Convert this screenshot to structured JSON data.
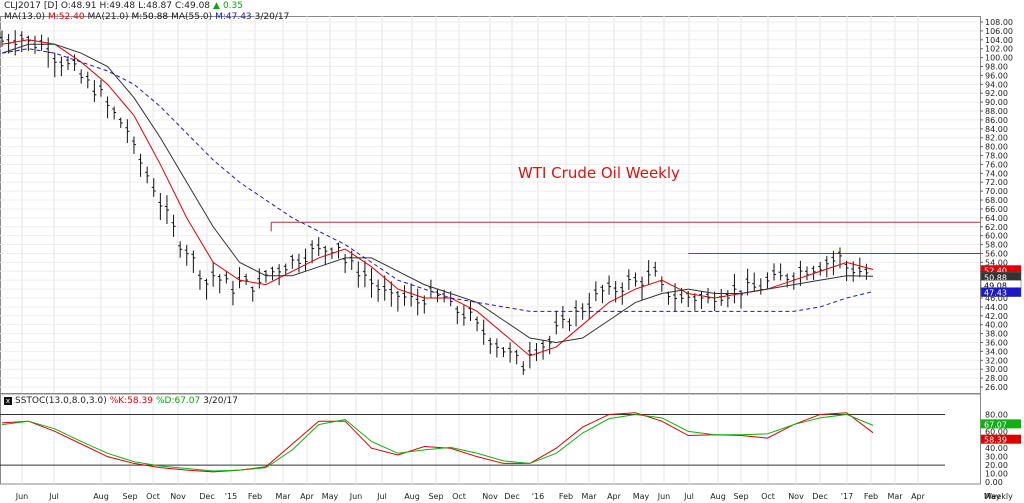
{
  "header": {
    "symbol": "CLJ2017",
    "interval": "[D]",
    "open": "O:48.91",
    "high": "H:49.48",
    "low": "L:48.87",
    "close": "C:49.08",
    "change": "0.35",
    "ma1_label": "MA(13.0)",
    "ma1_value": "M:52.40",
    "ma2_label": "MA(21.0)",
    "ma2_value": "M:50.88",
    "ma3_label": "MA(55.0)",
    "ma3_value": "M:47.43",
    "date": "3/20/17"
  },
  "title": "WTI Crude Oil Weekly",
  "stoch_header": {
    "icon": "x",
    "label": "SSTOC(13.0,8.0,3.0)",
    "k": "%K:58.39",
    "d": "%D:67.07",
    "date": "3/20/17"
  },
  "x_axis_labels": [
    "Jun",
    "Jul",
    "Aug",
    "Sep",
    "Oct",
    "Nov",
    "Dec",
    "'15",
    "Feb",
    "Mar",
    "Apr",
    "May",
    "Jun",
    "Jul",
    "Aug",
    "Sep",
    "Oct",
    "Nov",
    "Dec",
    "'16",
    "Feb",
    "Mar",
    "Apr",
    "May",
    "Jun",
    "Jul",
    "Aug",
    "Sep",
    "Oct",
    "Nov",
    "Dec",
    "'17",
    "Feb",
    "Mar",
    "Apr",
    "May",
    "Weekly"
  ],
  "price_labels": [
    "108.00",
    "106.00",
    "104.00",
    "102.00",
    "100.00",
    "98.00",
    "96.00",
    "94.00",
    "92.00",
    "90.00",
    "88.00",
    "86.00",
    "84.00",
    "82.00",
    "80.00",
    "78.00",
    "76.00",
    "74.00",
    "72.00",
    "70.00",
    "68.00",
    "66.00",
    "64.00",
    "62.00",
    "60.00",
    "58.00",
    "56.00",
    "54.00",
    "52.00",
    "50.00",
    "48.00",
    "46.00",
    "44.00",
    "42.00",
    "40.00",
    "38.00",
    "36.00",
    "34.00",
    "32.00",
    "30.00",
    "28.00",
    "26.00"
  ],
  "stoch_labels": [
    "80.00",
    "70.00",
    "60.00",
    "50.00",
    "40.00",
    "30.00",
    "20.00",
    "10.00",
    "0.00"
  ],
  "value_tags": [
    {
      "text": "52.40",
      "value": 52.4,
      "bg": "#e00000",
      "fg": "#ffffff"
    },
    {
      "text": "50.88",
      "value": 50.88,
      "bg": "#333333",
      "fg": "#ffffff"
    },
    {
      "text": "49.08",
      "value": 49.08,
      "bg": "#ffffff",
      "fg": "#000000"
    },
    {
      "text": "47.43",
      "value": 47.43,
      "bg": "#1a1ac8",
      "fg": "#ffffff"
    }
  ],
  "stoch_tags": [
    {
      "text": "67.07",
      "value": 67.07,
      "bg": "#10b010",
      "fg": "#ffffff"
    },
    {
      "text": "58.39",
      "value": 58.39,
      "bg": "#e00000",
      "fg": "#ffffff"
    }
  ],
  "colors": {
    "ma13": "#e00000",
    "ma21": "#333333",
    "ma55": "#1a1ac8",
    "bars": "#111111",
    "k": "#e00000",
    "d": "#10b010",
    "resistance": "#b03030"
  },
  "chart_data": [
    {
      "type": "ohlc-line",
      "title": "WTI Crude Oil Weekly",
      "ylim": [
        26,
        108
      ],
      "x": [
        "Jun",
        "Jul",
        "Aug",
        "Sep",
        "Oct",
        "Nov",
        "Dec",
        "'15",
        "Feb",
        "Mar",
        "Apr",
        "May",
        "Jun",
        "Jul",
        "Aug",
        "Sep",
        "Oct",
        "Nov",
        "Dec",
        "'16",
        "Feb",
        "Mar",
        "Apr",
        "May",
        "Jun",
        "Jul",
        "Aug",
        "Sep",
        "Oct",
        "Nov",
        "Dec",
        "'17",
        "Feb",
        "Mar"
      ],
      "series": [
        {
          "name": "MA(13.0)",
          "values": [
            103,
            104,
            103,
            99,
            94,
            87,
            76,
            64,
            54,
            50,
            49,
            52,
            55,
            57,
            53,
            48,
            46,
            46,
            43,
            38,
            33,
            35,
            40,
            45,
            48,
            50,
            47,
            46,
            47,
            48,
            50,
            52,
            54,
            52.4
          ]
        },
        {
          "name": "MA(21.0)",
          "values": [
            101,
            103,
            103,
            101,
            98,
            91,
            82,
            72,
            62,
            54,
            51,
            51,
            53,
            55,
            55,
            52,
            49,
            47,
            45,
            41,
            37,
            36,
            37,
            41,
            45,
            47,
            48,
            47,
            47,
            48,
            49,
            50,
            51,
            50.88
          ]
        },
        {
          "name": "MA(55.0)",
          "values": [
            101,
            102,
            101,
            99,
            97,
            94,
            89,
            83,
            77,
            72,
            68,
            64,
            61,
            58,
            54,
            50,
            48,
            46,
            45,
            44,
            43,
            43,
            43,
            43,
            43,
            43,
            43,
            43,
            43,
            43,
            43,
            44,
            46,
            47.43
          ]
        }
      ],
      "resistance_levels": [
        63,
        56
      ]
    },
    {
      "type": "line",
      "title": "SSTOC(13.0,8.0,3.0)",
      "ylim": [
        0,
        90
      ],
      "x": [
        "Jun",
        "Jul",
        "Aug",
        "Sep",
        "Oct",
        "Nov",
        "Dec",
        "'15",
        "Feb",
        "Mar",
        "Apr",
        "May",
        "Jun",
        "Jul",
        "Aug",
        "Sep",
        "Oct",
        "Nov",
        "Dec",
        "'16",
        "Feb",
        "Mar",
        "Apr",
        "May",
        "Jun",
        "Jul",
        "Aug",
        "Sep",
        "Oct",
        "Nov",
        "Dec",
        "'17",
        "Feb",
        "Mar"
      ],
      "series": [
        {
          "name": "%K",
          "values": [
            70,
            72,
            60,
            45,
            30,
            22,
            17,
            14,
            12,
            14,
            18,
            45,
            72,
            72,
            40,
            32,
            42,
            40,
            30,
            22,
            22,
            40,
            65,
            80,
            82,
            72,
            55,
            56,
            55,
            52,
            68,
            80,
            82,
            58.39
          ]
        },
        {
          "name": "%D",
          "values": [
            68,
            72,
            63,
            48,
            34,
            24,
            19,
            16,
            13,
            14,
            17,
            38,
            68,
            74,
            48,
            34,
            38,
            41,
            34,
            25,
            22,
            34,
            58,
            75,
            80,
            76,
            60,
            56,
            56,
            57,
            68,
            76,
            80,
            67.07
          ]
        }
      ],
      "reference_levels": [
        80,
        20
      ]
    }
  ]
}
